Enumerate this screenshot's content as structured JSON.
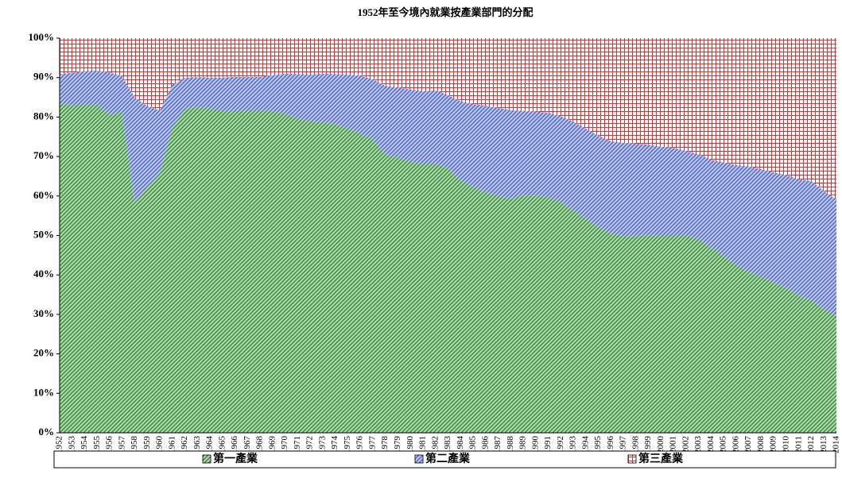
{
  "chart_data": {
    "type": "stacked_area",
    "title": "1952年至今境內就業按產業部門的分配",
    "categories": [
      "1952",
      "1953",
      "1954",
      "1955",
      "1956",
      "1957",
      "1958",
      "1959",
      "1960",
      "1961",
      "1962",
      "1963",
      "1964",
      "1965",
      "1966",
      "1967",
      "1968",
      "1969",
      "1970",
      "1971",
      "1972",
      "1973",
      "1974",
      "1975",
      "1976",
      "1977",
      "1978",
      "1979",
      "1980",
      "1981",
      "1982",
      "1983",
      "1984",
      "1985",
      "1986",
      "1987",
      "1988",
      "1989",
      "1990",
      "1991",
      "1992",
      "1993",
      "1994",
      "1995",
      "1996",
      "1997",
      "1998",
      "1999",
      "2000",
      "2001",
      "2002",
      "2003",
      "2004",
      "2005",
      "2006",
      "2007",
      "2008",
      "2009",
      "2010",
      "2011",
      "2012",
      "2013",
      "2014"
    ],
    "series": [
      {
        "name": "第一產業",
        "color": "#2e8b2e",
        "values": [
          83.5,
          83,
          83,
          83.2,
          80.6,
          81.2,
          58.2,
          62.2,
          65.7,
          77.2,
          82.1,
          82.5,
          82.2,
          81.6,
          81.5,
          81.7,
          81.7,
          81.6,
          80.8,
          79.7,
          78.9,
          78.7,
          78.2,
          77.2,
          75.8,
          74.5,
          70.5,
          69.8,
          68.7,
          68.1,
          68.1,
          67.1,
          64.0,
          62.4,
          60.9,
          60.0,
          59.3,
          60.1,
          60.1,
          59.7,
          58.5,
          56.4,
          54.3,
          52.2,
          50.5,
          49.9,
          49.8,
          50.1,
          50.0,
          50.0,
          50.0,
          49.1,
          46.9,
          44.8,
          42.6,
          40.8,
          39.6,
          38.1,
          36.7,
          34.8,
          33.6,
          31.4,
          29.5
        ]
      },
      {
        "name": "第二產業",
        "color": "#4a64c8",
        "values": [
          7.4,
          8.2,
          8.7,
          8.6,
          10.7,
          9.2,
          26.8,
          20.6,
          16.0,
          11.0,
          7.9,
          7.6,
          7.8,
          8.4,
          8.7,
          8.5,
          8.5,
          9.0,
          10.2,
          11.2,
          11.9,
          12.3,
          12.7,
          13.6,
          14.7,
          15.1,
          17.4,
          17.7,
          18.3,
          18.5,
          18.7,
          18.5,
          20.0,
          20.9,
          22.0,
          22.3,
          22.5,
          21.5,
          21.3,
          21.4,
          21.7,
          22.5,
          22.8,
          23.1,
          23.4,
          23.6,
          23.5,
          22.9,
          22.5,
          22.2,
          21.4,
          21.5,
          22.3,
          23.7,
          25.2,
          26.7,
          27.2,
          27.9,
          28.6,
          29.4,
          30.2,
          29.9,
          29.6
        ]
      },
      {
        "name": "第三產業",
        "color": "#e03030",
        "values": [
          9.1,
          8.8,
          8.3,
          8.2,
          8.7,
          9.6,
          15.0,
          17.2,
          18.3,
          11.8,
          10.0,
          9.9,
          10.0,
          10.0,
          9.8,
          9.8,
          9.8,
          9.4,
          9.0,
          9.1,
          9.2,
          9.0,
          9.1,
          9.2,
          9.5,
          10.4,
          12.1,
          12.5,
          13.0,
          13.4,
          13.2,
          14.4,
          16.0,
          16.7,
          17.1,
          17.7,
          18.2,
          18.4,
          18.6,
          18.9,
          19.8,
          21.1,
          22.9,
          24.7,
          26.1,
          26.5,
          26.7,
          27.0,
          27.5,
          27.8,
          28.6,
          29.4,
          30.8,
          31.5,
          32.2,
          32.5,
          33.2,
          34.0,
          34.7,
          35.8,
          36.2,
          38.7,
          40.9
        ]
      }
    ],
    "ylim": [
      0,
      100
    ],
    "yticks": [
      {
        "value": 0,
        "label": "0%"
      },
      {
        "value": 10,
        "label": "10%"
      },
      {
        "value": 20,
        "label": "20%"
      },
      {
        "value": 30,
        "label": "30%"
      },
      {
        "value": 40,
        "label": "40%"
      },
      {
        "value": 50,
        "label": "50%"
      },
      {
        "value": 60,
        "label": "60%"
      },
      {
        "value": 70,
        "label": "70%"
      },
      {
        "value": 80,
        "label": "80%"
      },
      {
        "value": 90,
        "label": "90%"
      },
      {
        "value": 100,
        "label": "100%"
      }
    ],
    "legend": "bottom"
  }
}
